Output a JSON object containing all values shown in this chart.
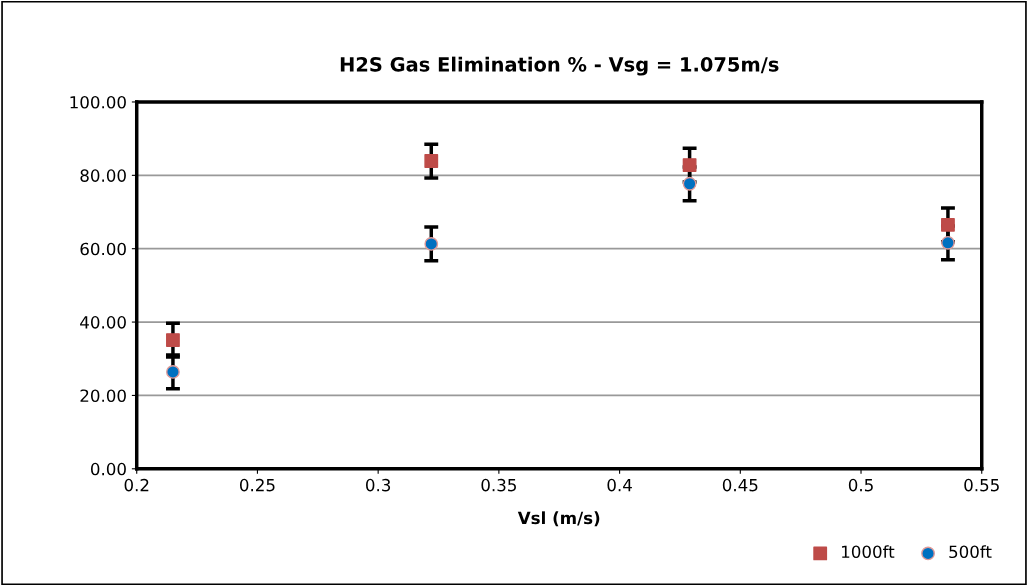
{
  "chart_data": {
    "type": "scatter",
    "title": "H2S Gas Elimination % - Vsg = 1.075m/s",
    "xlabel": "Vsl (m/s)",
    "xlim": [
      0.2,
      0.55
    ],
    "xticks": [
      0.2,
      0.25,
      0.3,
      0.35,
      0.4,
      0.45,
      0.5,
      0.55
    ],
    "ylim": [
      0,
      100
    ],
    "yticks": [
      {
        "value": 0,
        "label": "0.00"
      },
      {
        "value": 20,
        "label": "20.00"
      },
      {
        "value": 40,
        "label": "40.00"
      },
      {
        "value": 60,
        "label": "60.00"
      },
      {
        "value": 80,
        "label": "80.00"
      },
      {
        "value": 100,
        "label": "100.00"
      }
    ],
    "grid": "y",
    "legend": "bottom right",
    "series": [
      {
        "name": "1000ft",
        "color": "#be4b48",
        "marker": "square",
        "x": [
          0.215,
          0.322,
          0.429,
          0.536
        ],
        "values": [
          35.1,
          83.9,
          82.8,
          66.5
        ],
        "errors": [
          4.6,
          4.6,
          4.6,
          4.6
        ]
      },
      {
        "name": "500ft",
        "color": "#0070c0",
        "marker": "circle",
        "x": [
          0.215,
          0.322,
          0.429,
          0.536
        ],
        "values": [
          26.4,
          61.3,
          77.7,
          61.6
        ],
        "errors": [
          4.6,
          4.6,
          4.6,
          4.6
        ]
      }
    ]
  }
}
